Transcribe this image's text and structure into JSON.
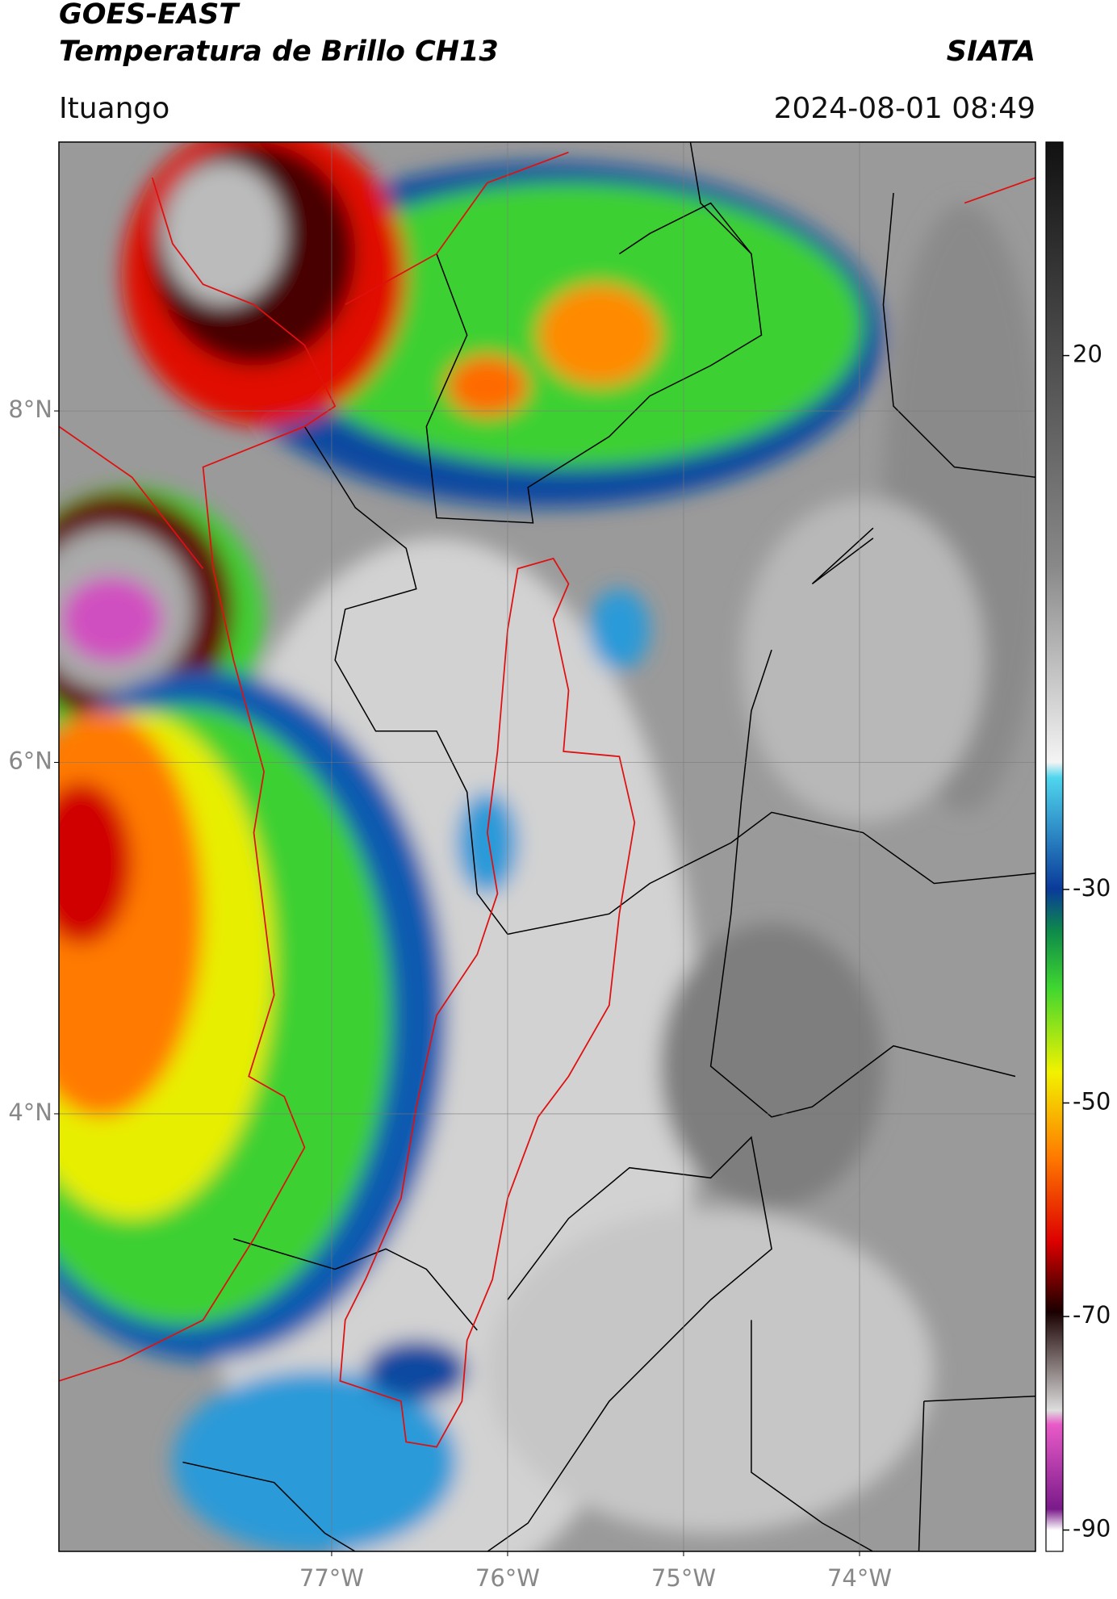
{
  "header": {
    "title_line1": "GOES-EAST",
    "title_line2": "Temperatura de Brillo CH13",
    "source": "SIATA",
    "location": "Ituango",
    "datetime": "2024-08-01 08:49"
  },
  "map": {
    "xlim": [
      -78.55,
      -73.0
    ],
    "ylim": [
      1.51,
      9.53
    ],
    "xticks": [
      {
        "value": -77,
        "label": "77°W"
      },
      {
        "value": -76,
        "label": "76°W"
      },
      {
        "value": -75,
        "label": "75°W"
      },
      {
        "value": -74,
        "label": "74°W"
      }
    ],
    "yticks": [
      {
        "value": 8,
        "label": "8°N"
      },
      {
        "value": 6,
        "label": "6°N"
      },
      {
        "value": 4,
        "label": "4°N"
      }
    ],
    "grid": true
  },
  "colorbar": {
    "lim": [
      -92,
      40
    ],
    "ticks": [
      20,
      -30,
      -50,
      -70,
      -90
    ]
  }
}
